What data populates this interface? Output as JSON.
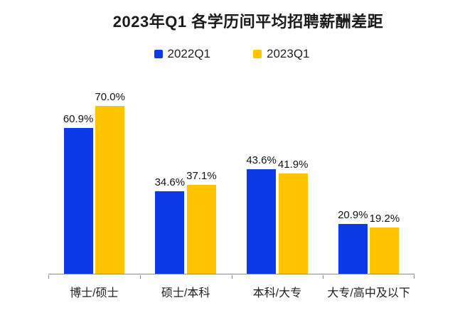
{
  "chart_data": {
    "type": "bar",
    "title": "2023年Q1 各学历间平均招聘薪酬差距",
    "categories": [
      "博士/硕士",
      "硕士/本科",
      "本科/大专",
      "大专/高中及以下"
    ],
    "series": [
      {
        "name": "2022Q1",
        "color": "#0b3be8",
        "values": [
          60.9,
          34.6,
          43.6,
          20.9
        ]
      },
      {
        "name": "2023Q1",
        "color": "#ffc400",
        "values": [
          70.0,
          37.1,
          41.9,
          19.2
        ]
      }
    ],
    "value_suffix": "%",
    "value_labels": [
      [
        "60.9%",
        "34.6%",
        "43.6%",
        "20.9%"
      ],
      [
        "70.0%",
        "37.1%",
        "41.9%",
        "19.2%"
      ]
    ],
    "ylim": [
      0,
      82
    ],
    "grid": false,
    "y_axis_visible": false,
    "legend_position": "top",
    "axis_color": "#8c8c8c",
    "background_color": "#ffffff",
    "title_color": "#1a1a1a"
  }
}
